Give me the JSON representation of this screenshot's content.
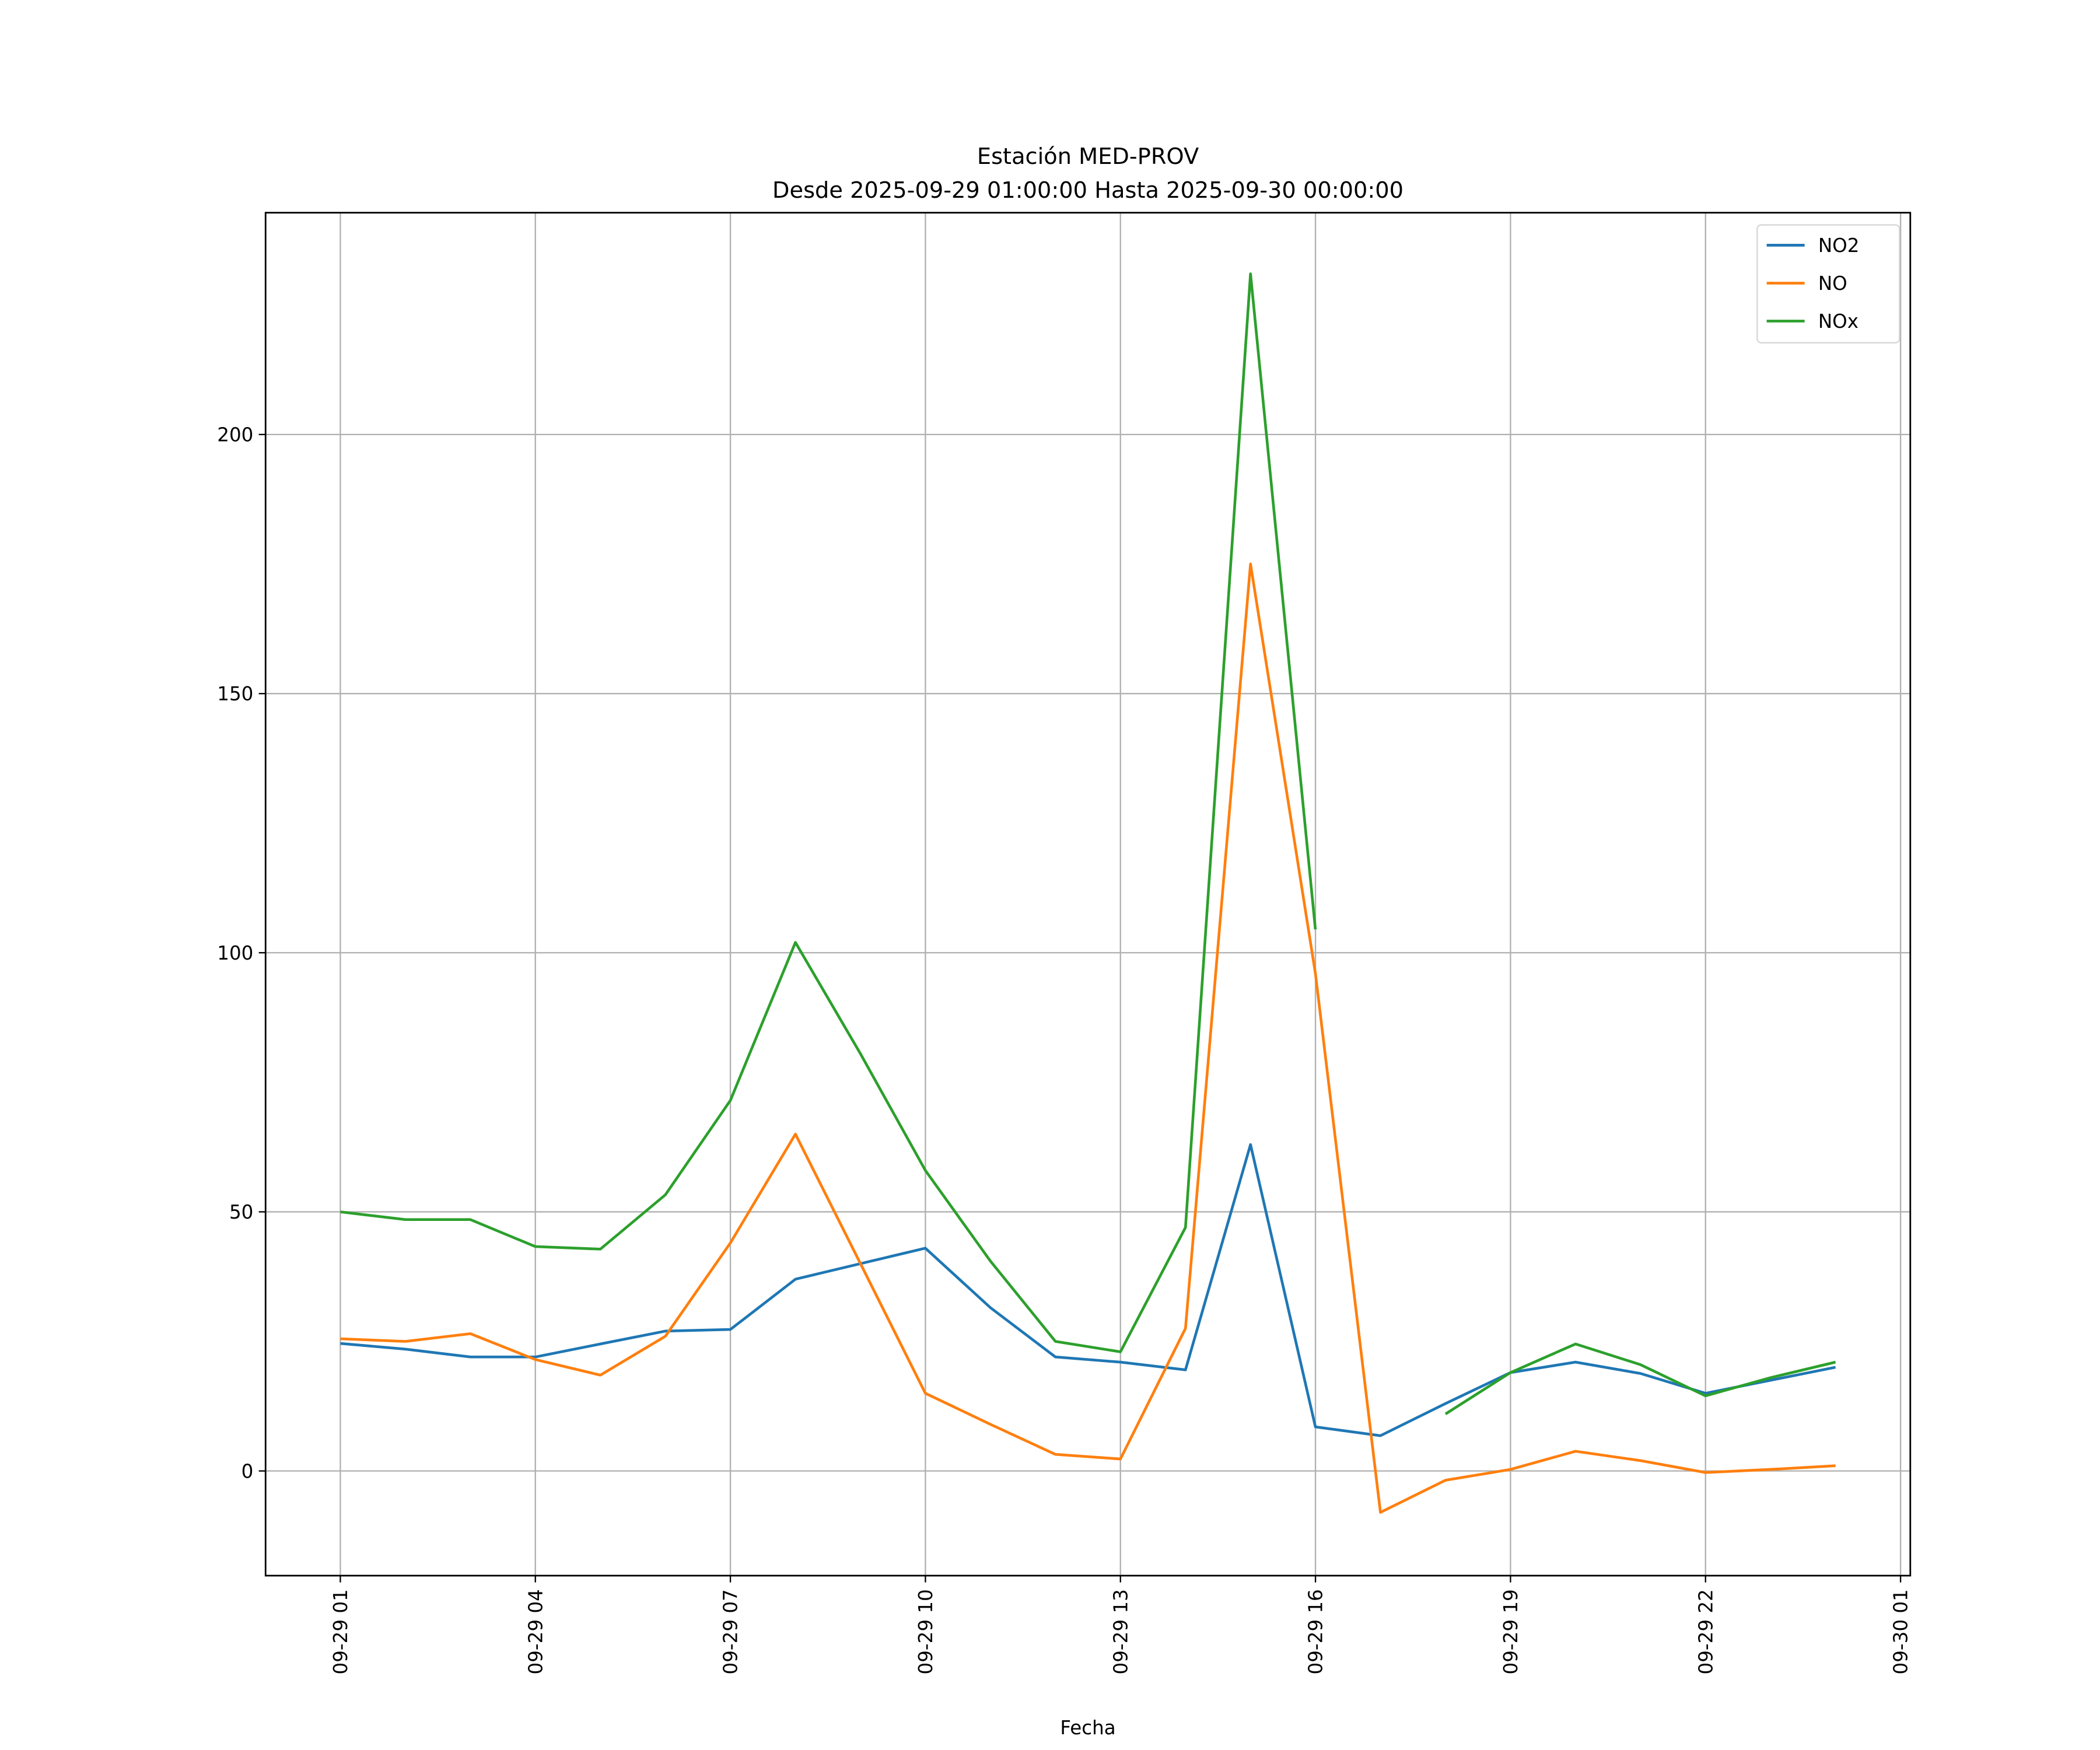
{
  "chart_data": {
    "type": "line",
    "title": "Estación MED-PROV",
    "subtitle": "Desde 2025-09-29 01:00:00 Hasta 2025-09-30 00:00:00",
    "xlabel": "Fecha",
    "ylabel": "",
    "x": [
      "2025-09-29 01:00",
      "2025-09-29 02:00",
      "2025-09-29 03:00",
      "2025-09-29 04:00",
      "2025-09-29 05:00",
      "2025-09-29 06:00",
      "2025-09-29 07:00",
      "2025-09-29 08:00",
      "2025-09-29 09:00",
      "2025-09-29 10:00",
      "2025-09-29 11:00",
      "2025-09-29 12:00",
      "2025-09-29 13:00",
      "2025-09-29 14:00",
      "2025-09-29 15:00",
      "2025-09-29 16:00",
      "2025-09-29 17:00",
      "2025-09-29 18:00",
      "2025-09-29 19:00",
      "2025-09-29 20:00",
      "2025-09-29 21:00",
      "2025-09-29 22:00",
      "2025-09-29 23:00",
      "2025-09-30 00:00"
    ],
    "series": [
      {
        "name": "NO2",
        "color": "#1f77b4",
        "values": [
          24.6,
          23.5,
          22,
          22,
          24.5,
          27,
          27.3,
          37,
          40,
          43,
          31.5,
          22,
          21,
          19.5,
          63,
          8.5,
          6.8,
          13,
          19,
          21,
          18.8,
          15,
          17.5,
          20
        ]
      },
      {
        "name": "NO",
        "color": "#ff7f0e",
        "values": [
          25.5,
          25,
          26.5,
          21.5,
          18.5,
          26,
          44,
          65,
          40,
          15,
          9,
          3.2,
          2.3,
          27.5,
          175,
          96,
          -8,
          -1.8,
          0.3,
          3.8,
          2,
          -0.3,
          0.3,
          1
        ]
      },
      {
        "name": "NOx",
        "color": "#2ca02c",
        "values": [
          50,
          48.5,
          48.5,
          43.3,
          42.8,
          53.3,
          71.5,
          102,
          80.5,
          58,
          40.5,
          25,
          23,
          47,
          231,
          104.5,
          null,
          11,
          19,
          24.5,
          20.5,
          14.5,
          18,
          21
        ]
      }
    ],
    "xlim": [
      "2025-09-28 23:51",
      "2025-09-30 01:09"
    ],
    "ylim": [
      -20.2,
      242.8
    ],
    "xticks": [
      "09-29 01",
      "09-29 04",
      "09-29 07",
      "09-29 10",
      "09-29 13",
      "09-29 16",
      "09-29 19",
      "09-29 22",
      "09-30 01"
    ],
    "xtick_values": [
      "2025-09-29 01:00",
      "2025-09-29 04:00",
      "2025-09-29 07:00",
      "2025-09-29 10:00",
      "2025-09-29 13:00",
      "2025-09-29 16:00",
      "2025-09-29 19:00",
      "2025-09-29 22:00",
      "2025-09-30 01:00"
    ],
    "yticks": [
      0,
      50,
      100,
      150,
      200
    ],
    "grid": true,
    "legend": "top-right"
  }
}
